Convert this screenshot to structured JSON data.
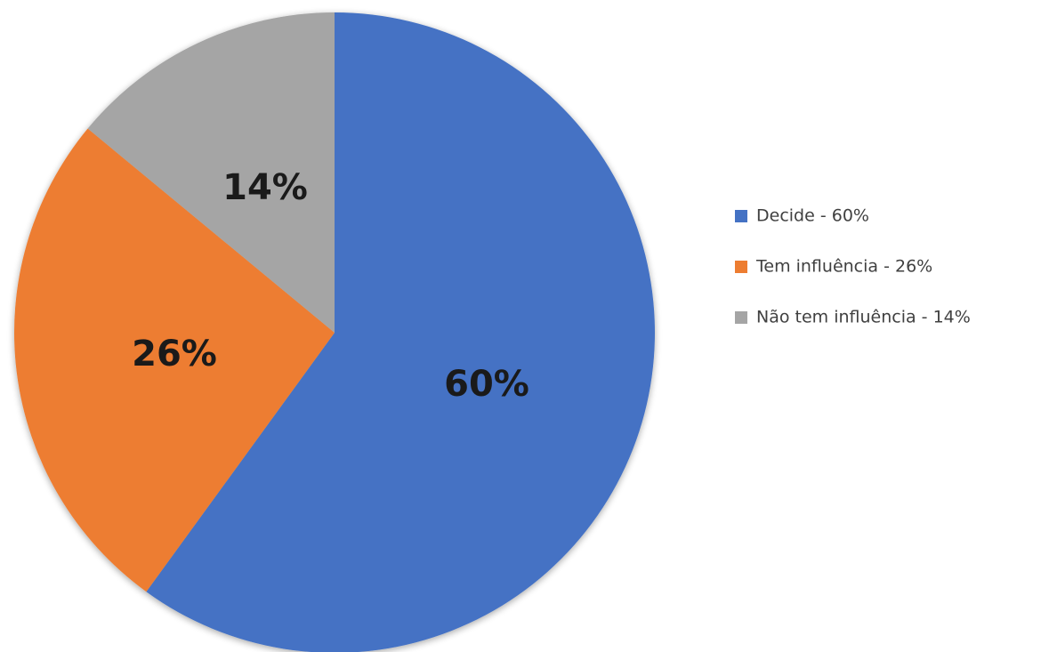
{
  "chart_data": {
    "type": "pie",
    "categories": [
      "Decide",
      "Tem influência",
      "Não tem influência"
    ],
    "values": [
      60,
      26,
      14
    ],
    "data_labels": [
      "60%",
      "26%",
      "14%"
    ],
    "colors": [
      "#4472C4",
      "#ED7D31",
      "#A5A5A5"
    ],
    "start_angle": "12 o'clock, clockwise",
    "legend": {
      "position": "right",
      "entries": [
        "Decide - 60%",
        "Tem influência - 26%",
        "Não tem influência - 14%"
      ]
    }
  }
}
